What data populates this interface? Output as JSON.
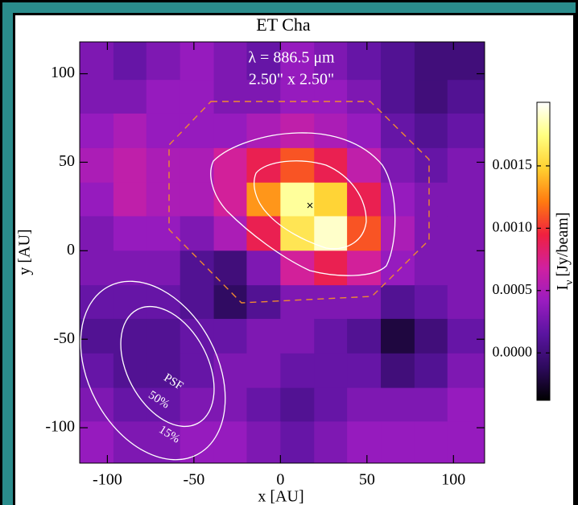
{
  "chart_data": {
    "type": "heatmap",
    "title": "ET Cha",
    "annotations": [
      "λ = 886.5 μm",
      "2.50\" x 2.50\"",
      "PSF",
      "50%",
      "15%"
    ],
    "xlabel": "x [AU]",
    "ylabel": "y [AU]",
    "x": [
      -106,
      -87,
      -68,
      -48,
      -29,
      -10,
      10,
      29,
      48,
      68,
      87,
      106
    ],
    "y": [
      106,
      87,
      68,
      48,
      29,
      10,
      -10,
      -29,
      -48,
      -68,
      -87,
      -106
    ],
    "z": [
      [
        0.0003,
        0.0002,
        0.0003,
        0.0004,
        0.0003,
        0.0002,
        0.0004,
        0.0003,
        0.0002,
        0.0001,
        0,
        0
      ],
      [
        0.0003,
        0.0003,
        0.0004,
        0.0004,
        0.0003,
        0.0003,
        0.0004,
        0.0004,
        0.0003,
        0.0001,
        0,
        0.0001
      ],
      [
        0.0004,
        0.0005,
        0.0004,
        0.0004,
        0.0004,
        0.0005,
        0.0006,
        0.0005,
        0.0004,
        0.0002,
        0.0001,
        0.0002
      ],
      [
        0.0005,
        0.0006,
        0.0005,
        0.0005,
        0.0007,
        0.0009,
        0.0011,
        0.0009,
        0.0006,
        0.0003,
        0.0002,
        0.0003
      ],
      [
        0.0004,
        0.0006,
        0.0005,
        0.0005,
        0.0007,
        0.0013,
        0.0018,
        0.0015,
        0.0009,
        0.0004,
        0.0003,
        0.0003
      ],
      [
        0.0003,
        0.0004,
        0.0004,
        0.0003,
        0.0005,
        0.0009,
        0.0016,
        0.0019,
        0.0011,
        0.0005,
        0.0003,
        0.0003
      ],
      [
        0.0003,
        0.0003,
        0.0003,
        0.0001,
        0,
        0.0003,
        0.0007,
        0.0009,
        0.0007,
        0.0004,
        0.0003,
        0.0003
      ],
      [
        0.0002,
        0.0002,
        0.0002,
        0.0001,
        -0.0001,
        0.0001,
        0.0003,
        0.0003,
        0.0003,
        0.0001,
        0.0002,
        0.0003
      ],
      [
        0.0001,
        0.0001,
        0.0001,
        0.0002,
        0.0002,
        0.0003,
        0.0003,
        0.0002,
        0.0001,
        -0.0002,
        0,
        0.0002
      ],
      [
        0.0002,
        0.0001,
        0.0001,
        0.0002,
        0.0003,
        0.0003,
        0.0002,
        0.0002,
        0.0002,
        0,
        0.0001,
        0.0003
      ],
      [
        0.0003,
        0.0002,
        0.0002,
        0.0003,
        0.0003,
        0.0002,
        0.0001,
        0.0002,
        0.0003,
        0.0003,
        0.0003,
        0.0004
      ],
      [
        0.0004,
        0.0003,
        0.0003,
        0.0004,
        0.0004,
        0.0003,
        0.0002,
        0.0003,
        0.0004,
        0.0004,
        0.0004,
        0.0004
      ]
    ],
    "xlim": [
      -116,
      118
    ],
    "ylim": [
      -120,
      118
    ],
    "xticks": [
      -100,
      -50,
      0,
      50,
      100
    ],
    "yticks": [
      -100,
      -50,
      0,
      50,
      100
    ],
    "colorscale": [
      "#000000",
      "#2e0a5e",
      "#5a14a0",
      "#9a1cc0",
      "#d020a0",
      "#f02040",
      "#ff7a10",
      "#ffd030",
      "#ffff80",
      "#ffffff"
    ],
    "colorbar": {
      "label": "I",
      "label_sub": "ν",
      "label_unit": "[Jy/beam]",
      "lim": [
        -0.00038,
        0.00201
      ],
      "ticks": [
        {
          "value": 0,
          "label": "0.0000"
        },
        {
          "value": 0.0005,
          "label": "0.0005"
        },
        {
          "value": 0.001,
          "label": "0.0010"
        },
        {
          "value": 0.0015,
          "label": "0.0015"
        }
      ]
    }
  }
}
